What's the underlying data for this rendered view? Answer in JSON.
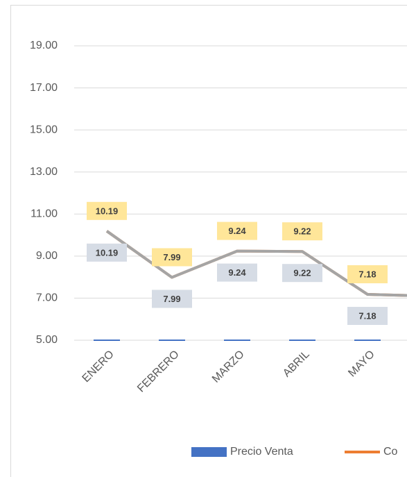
{
  "chart_data": {
    "type": "bar_line",
    "categories": [
      "ENERO",
      "FEBRERO",
      "MARZO",
      "ABRIL",
      "MAYO",
      null
    ],
    "series": [
      {
        "name": "Precio Venta",
        "type": "bar",
        "color": "#4472c4",
        "values": [
          5,
          5,
          5,
          5,
          5,
          null
        ]
      },
      {
        "name": "Co",
        "type": "line",
        "color": "#ed7d31",
        "label_fill": "#ffe699",
        "label_side": "above",
        "values": [
          10.19,
          7.99,
          9.24,
          9.22,
          7.18,
          7.1
        ]
      },
      {
        "type": "line",
        "color": "#a5a5a5",
        "label_fill": "#d6dce5",
        "label_side": "below",
        "values": [
          10.19,
          7.99,
          9.24,
          9.22,
          7.18,
          7.1
        ]
      }
    ],
    "ylim": [
      5,
      19
    ],
    "yticks": [
      {
        "value": 5,
        "label": "5.00"
      },
      {
        "value": 7,
        "label": "7.00"
      },
      {
        "value": 9,
        "label": "9.00"
      },
      {
        "value": 11,
        "label": "11.00"
      },
      {
        "value": 13,
        "label": "13.00"
      },
      {
        "value": 15,
        "label": "15.00"
      },
      {
        "value": 17,
        "label": "17.00"
      },
      {
        "value": 19,
        "label": "19.00"
      }
    ],
    "grid": true,
    "legend": "bottom"
  }
}
